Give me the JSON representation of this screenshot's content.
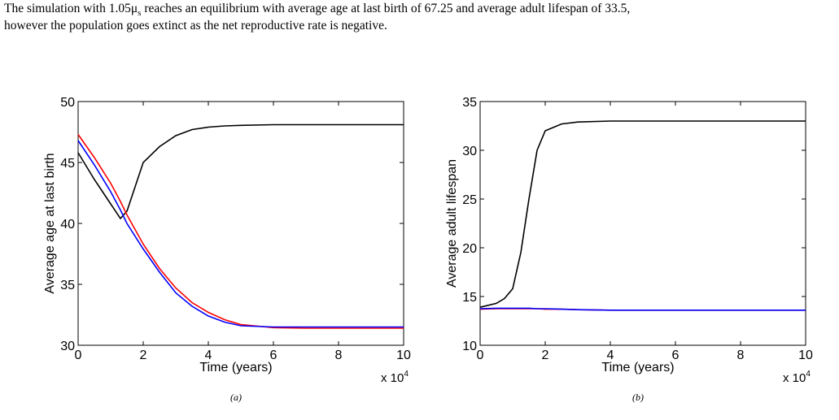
{
  "paragraph": {
    "line1_a": "The simulation with 1.05μ",
    "line1_sub": "s",
    "line1_b": " reaches an equilibrium with average age at last birth of 67.25 and average adult lifespan of 33.5,",
    "line2": "however the population goes extinct as the net reproductive rate is negative."
  },
  "chart_data": [
    {
      "type": "line",
      "ylabel": "Average age at last birth",
      "xlabel": "Time (years)",
      "x_multiplier": "x 10",
      "x_multiplier_exp": "4",
      "caption": "(a)",
      "xlim": [
        0,
        10
      ],
      "xticks": [
        0,
        2,
        4,
        6,
        8,
        10
      ],
      "ylim": [
        30,
        50
      ],
      "yticks": [
        30,
        35,
        40,
        45,
        50
      ],
      "x": [
        0,
        0.5,
        1,
        1.3,
        1.5,
        2,
        2.5,
        3,
        3.5,
        4,
        4.5,
        5,
        6,
        7,
        8,
        9,
        10
      ],
      "series": [
        {
          "color": "#000000",
          "values": [
            45.8,
            43.6,
            41.6,
            40.4,
            41.0,
            45.0,
            46.3,
            47.2,
            47.7,
            47.9,
            48.0,
            48.05,
            48.1,
            48.1,
            48.1,
            48.1,
            48.1
          ]
        },
        {
          "color": "#ff0000",
          "values": [
            47.3,
            45.4,
            43.3,
            41.8,
            40.7,
            38.3,
            36.3,
            34.7,
            33.5,
            32.7,
            32.1,
            31.7,
            31.45,
            31.4,
            31.4,
            31.4,
            31.4
          ]
        },
        {
          "color": "#0000ff",
          "values": [
            46.8,
            44.8,
            42.6,
            41.1,
            40.0,
            37.9,
            36.0,
            34.3,
            33.2,
            32.4,
            31.9,
            31.6,
            31.5,
            31.5,
            31.5,
            31.5,
            31.5
          ]
        }
      ]
    },
    {
      "type": "line",
      "ylabel": "Average adult lifespan",
      "xlabel": "Time (years)",
      "x_multiplier": "x 10",
      "x_multiplier_exp": "4",
      "caption": "(b)",
      "xlim": [
        0,
        10
      ],
      "xticks": [
        0,
        2,
        4,
        6,
        8,
        10
      ],
      "ylim": [
        10,
        35
      ],
      "yticks": [
        10,
        15,
        20,
        25,
        30,
        35
      ],
      "x": [
        0,
        0.5,
        0.75,
        1,
        1.25,
        1.5,
        1.75,
        2,
        2.5,
        3,
        4,
        5,
        6,
        7,
        8,
        9,
        10
      ],
      "series": [
        {
          "color": "#000000",
          "values": [
            13.9,
            14.3,
            14.8,
            15.8,
            19.5,
            25,
            30,
            32,
            32.7,
            32.9,
            33,
            33,
            33,
            33,
            33,
            33,
            33
          ]
        },
        {
          "color": "#ff0000",
          "values": [
            13.7,
            13.75,
            13.75,
            13.75,
            13.75,
            13.75,
            13.75,
            13.7,
            13.7,
            13.65,
            13.6,
            13.6,
            13.6,
            13.6,
            13.6,
            13.6,
            13.6
          ]
        },
        {
          "color": "#0000ff",
          "values": [
            13.75,
            13.8,
            13.8,
            13.8,
            13.8,
            13.8,
            13.75,
            13.75,
            13.7,
            13.65,
            13.6,
            13.6,
            13.6,
            13.6,
            13.6,
            13.6,
            13.6
          ]
        }
      ]
    }
  ]
}
